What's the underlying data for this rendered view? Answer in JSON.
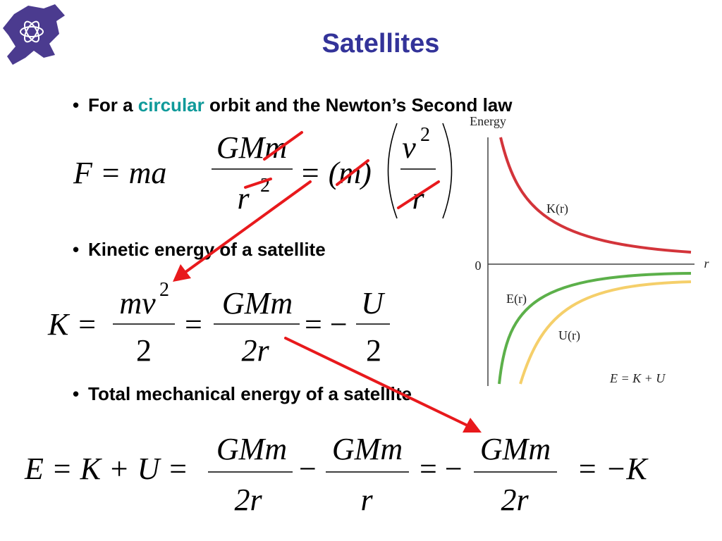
{
  "title": "Satellites",
  "bullet_marker": "•",
  "bullets": [
    {
      "parts": [
        "For a ",
        "circular",
        " orbit and the Newton’s Second law"
      ]
    },
    {
      "text": "Kinetic energy of a satellite"
    },
    {
      "text": "Total mechanical energy of a satellite"
    }
  ],
  "equations": [
    {
      "lhs": "F = ma",
      "num1": "GMm",
      "den1": "r",
      "exp1": "2",
      "eq": "= (m)",
      "num2": "v",
      "exp2": "2",
      "den2": "r"
    },
    {
      "lhs": "K =",
      "num1": "mv",
      "exp1": "2",
      "den1": "2",
      "eq1": "=",
      "num2": "GMm",
      "den2": "2r",
      "eq2": "= −",
      "num3": "U",
      "den3": "2"
    },
    {
      "lhs": "E = K + U =",
      "num1": "GMm",
      "den1": "2r",
      "op1": "−",
      "num2": "GMm",
      "den2": "r",
      "eq1": "= −",
      "num3": "GMm",
      "den3": "2r",
      "rhs": "= −K"
    }
  ],
  "graph": {
    "y_label": "Energy",
    "x_label": "r",
    "zero": "0",
    "curves": [
      {
        "label": "K(r)",
        "color": "#d3343a"
      },
      {
        "label": "E(r)",
        "color": "#5cb04a"
      },
      {
        "label": "U(r)",
        "color": "#f5cf6a"
      }
    ],
    "relation": "E = K + U"
  }
}
